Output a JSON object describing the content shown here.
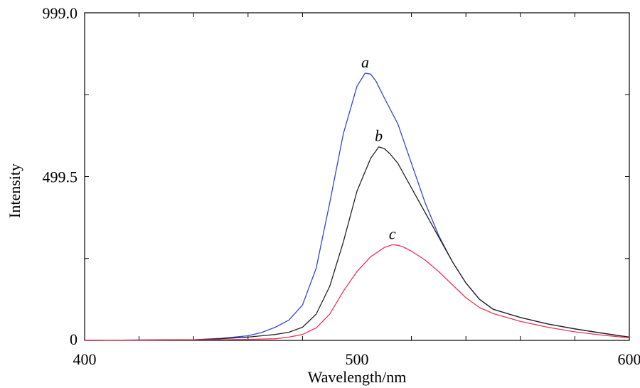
{
  "chart_data": {
    "type": "line",
    "title": "",
    "xlabel": "Wavelength/nm",
    "ylabel": "Intensity",
    "xlim": [
      400,
      600
    ],
    "ylim": [
      0,
      999.0
    ],
    "x_ticks": [
      "400",
      "500",
      "600"
    ],
    "y_ticks": [
      "0",
      "499.5",
      "999.0"
    ],
    "grid": false,
    "legend": "none",
    "series": [
      {
        "name": "a",
        "color": "#3344dd",
        "x": [
          400,
          440,
          450,
          460,
          465,
          470,
          475,
          480,
          485,
          490,
          495,
          500,
          503,
          505,
          507,
          510,
          515,
          520,
          525,
          530,
          535,
          540,
          545,
          550,
          560,
          570,
          580,
          590,
          600
        ],
        "y": [
          0,
          2,
          6,
          14,
          24,
          40,
          62,
          108,
          220,
          420,
          630,
          775,
          815,
          812,
          790,
          740,
          660,
          540,
          420,
          320,
          240,
          175,
          125,
          95,
          70,
          50,
          35,
          22,
          10
        ]
      },
      {
        "name": "b",
        "color": "#222222",
        "x": [
          400,
          440,
          450,
          460,
          465,
          470,
          475,
          480,
          485,
          490,
          495,
          500,
          505,
          508,
          510,
          512,
          515,
          520,
          525,
          530,
          535,
          540,
          545,
          550,
          560,
          570,
          580,
          590,
          600
        ],
        "y": [
          0,
          2,
          5,
          10,
          14,
          18,
          25,
          40,
          80,
          165,
          300,
          455,
          555,
          590,
          585,
          570,
          540,
          465,
          390,
          315,
          240,
          175,
          125,
          95,
          70,
          50,
          35,
          22,
          10
        ]
      },
      {
        "name": "c",
        "color": "#ee3355",
        "x": [
          400,
          450,
          460,
          470,
          475,
          480,
          485,
          490,
          495,
          500,
          505,
          510,
          513,
          515,
          517,
          520,
          525,
          530,
          535,
          540,
          545,
          550,
          560,
          570,
          580,
          590,
          600
        ],
        "y": [
          0,
          2,
          3,
          5,
          10,
          18,
          38,
          80,
          150,
          210,
          255,
          283,
          292,
          290,
          285,
          272,
          245,
          210,
          170,
          130,
          100,
          82,
          58,
          40,
          26,
          16,
          8
        ]
      }
    ]
  }
}
